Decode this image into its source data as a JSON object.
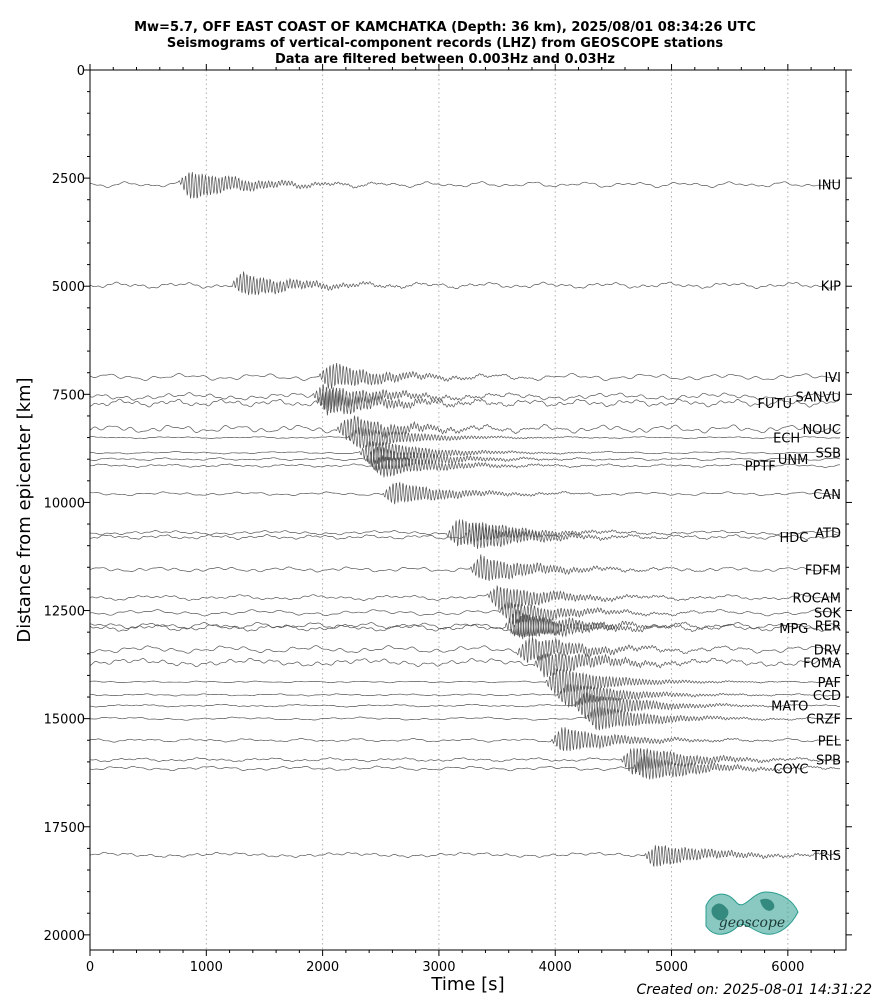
{
  "chart_data": {
    "type": "line",
    "title_lines": [
      "Mw=5.7, OFF EAST COAST OF KAMCHATKA (Depth: 36 km), 2025/08/01 08:34:26 UTC",
      "Seismograms of vertical-component records (LHZ) from GEOSCOPE stations",
      "Data are filtered between 0.003Hz and 0.03Hz"
    ],
    "xlabel": "Time [s]",
    "ylabel": "Distance from epicenter [km]",
    "xlim": [
      0,
      6500
    ],
    "ylim": [
      20350,
      0
    ],
    "xticks": [
      0,
      1000,
      2000,
      3000,
      4000,
      5000,
      6000
    ],
    "yticks": [
      0,
      2500,
      5000,
      7500,
      10000,
      12500,
      15000,
      17500,
      20000
    ],
    "grid": "vertical dotted lines at major x ticks",
    "trace_color": "#555555",
    "logo_color": "#2a9d8f",
    "stations": [
      {
        "name": "INU",
        "distance": 2650,
        "arrival": 800,
        "amp": 1.0
      },
      {
        "name": "KIP",
        "distance": 4980,
        "arrival": 1250,
        "amp": 0.8
      },
      {
        "name": "IVI",
        "distance": 7100,
        "arrival": 2000,
        "amp": 0.9
      },
      {
        "name": "SANVU",
        "distance": 7550,
        "arrival": 1950,
        "amp": 0.9
      },
      {
        "name": "FUTU",
        "distance": 7700,
        "arrival": 1980,
        "amp": 0.9
      },
      {
        "name": "NOUC",
        "distance": 8300,
        "arrival": 2150,
        "amp": 0.8
      },
      {
        "name": "ECH",
        "distance": 8500,
        "arrival": 2250,
        "amp": 0.8
      },
      {
        "name": "SSB",
        "distance": 8850,
        "arrival": 2350,
        "amp": 0.9
      },
      {
        "name": "UNM",
        "distance": 9000,
        "arrival": 2400,
        "amp": 0.9
      },
      {
        "name": "PPTF",
        "distance": 9150,
        "arrival": 2450,
        "amp": 0.8
      },
      {
        "name": "CAN",
        "distance": 9800,
        "arrival": 2550,
        "amp": 0.8
      },
      {
        "name": "ATD",
        "distance": 10700,
        "arrival": 3100,
        "amp": 1.0
      },
      {
        "name": "HDC",
        "distance": 10800,
        "arrival": 3250,
        "amp": 0.9
      },
      {
        "name": "FDFM",
        "distance": 11550,
        "arrival": 3300,
        "amp": 0.9
      },
      {
        "name": "ROCAM",
        "distance": 12200,
        "arrival": 3450,
        "amp": 0.9
      },
      {
        "name": "SOK",
        "distance": 12550,
        "arrival": 3550,
        "amp": 0.8
      },
      {
        "name": "RER",
        "distance": 12850,
        "arrival": 3600,
        "amp": 1.0
      },
      {
        "name": "MPG",
        "distance": 12900,
        "arrival": 3650,
        "amp": 0.9
      },
      {
        "name": "DRV",
        "distance": 13400,
        "arrival": 3700,
        "amp": 0.9
      },
      {
        "name": "FOMA",
        "distance": 13700,
        "arrival": 3850,
        "amp": 0.9
      },
      {
        "name": "PAF",
        "distance": 14150,
        "arrival": 3950,
        "amp": 1.0
      },
      {
        "name": "CCD",
        "distance": 14450,
        "arrival": 4050,
        "amp": 0.9
      },
      {
        "name": "MATO",
        "distance": 14700,
        "arrival": 4200,
        "amp": 1.0
      },
      {
        "name": "CRZF",
        "distance": 15000,
        "arrival": 4300,
        "amp": 0.9
      },
      {
        "name": "PEL",
        "distance": 15500,
        "arrival": 4000,
        "amp": 0.9
      },
      {
        "name": "SPB",
        "distance": 15950,
        "arrival": 4600,
        "amp": 1.0
      },
      {
        "name": "COYC",
        "distance": 16150,
        "arrival": 4700,
        "amp": 0.9
      },
      {
        "name": "TRIS",
        "distance": 18150,
        "arrival": 4800,
        "amp": 0.8
      }
    ]
  },
  "footer": {
    "created": "Created on: 2025-08-01 14:31:22"
  },
  "logo": {
    "text": "geoscope"
  }
}
